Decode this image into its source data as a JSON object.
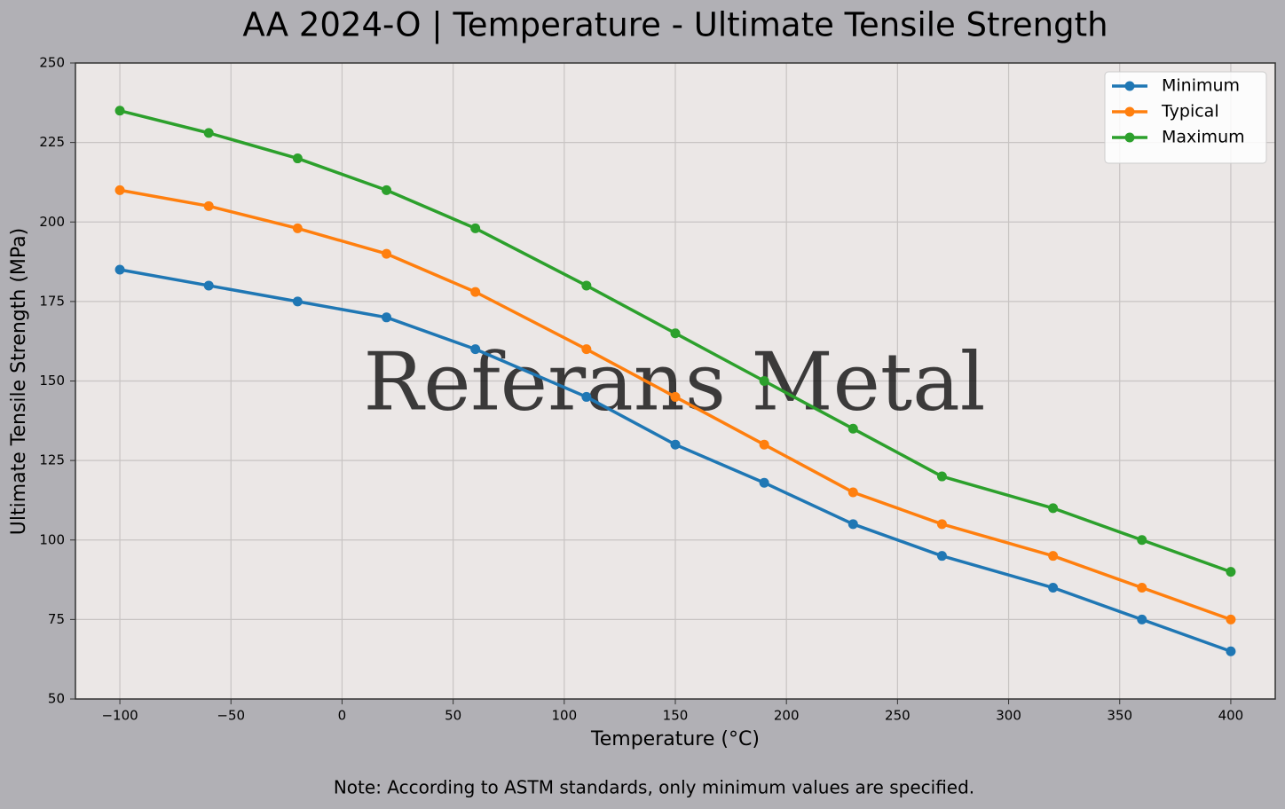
{
  "chart_data": {
    "type": "line",
    "title": "AA 2024-O | Temperature - Ultimate Tensile Strength",
    "x_label": "Temperature (°C)",
    "y_label": "Ultimate Tensile Strength (MPa)",
    "watermark": "Referans Metal",
    "note": "Note: According to ASTM standards, only minimum values are specified.",
    "x": [
      -100,
      -60,
      -20,
      20,
      60,
      110,
      150,
      190,
      230,
      270,
      320,
      360,
      400
    ],
    "series": [
      {
        "name": "Minimum",
        "color": "#1f77b4",
        "values": [
          185,
          180,
          175,
          170,
          160,
          145,
          130,
          118,
          105,
          95,
          85,
          75,
          65
        ]
      },
      {
        "name": "Typical",
        "color": "#ff7f0e",
        "values": [
          210,
          205,
          198,
          190,
          178,
          160,
          145,
          130,
          115,
          105,
          95,
          85,
          75
        ]
      },
      {
        "name": "Maximum",
        "color": "#2ca02c",
        "values": [
          235,
          228,
          220,
          210,
          198,
          180,
          165,
          150,
          135,
          120,
          110,
          100,
          90
        ]
      }
    ],
    "xlim": [
      -120,
      420
    ],
    "ylim": [
      50,
      250
    ],
    "xticks": [
      {
        "value": -100,
        "label": "−100"
      },
      {
        "value": -50,
        "label": "−50"
      },
      0,
      50,
      100,
      150,
      200,
      250,
      300,
      350,
      400
    ],
    "yticks": [
      50,
      75,
      100,
      125,
      150,
      175,
      200,
      225,
      250
    ],
    "grid": true,
    "legend": "upper right"
  }
}
